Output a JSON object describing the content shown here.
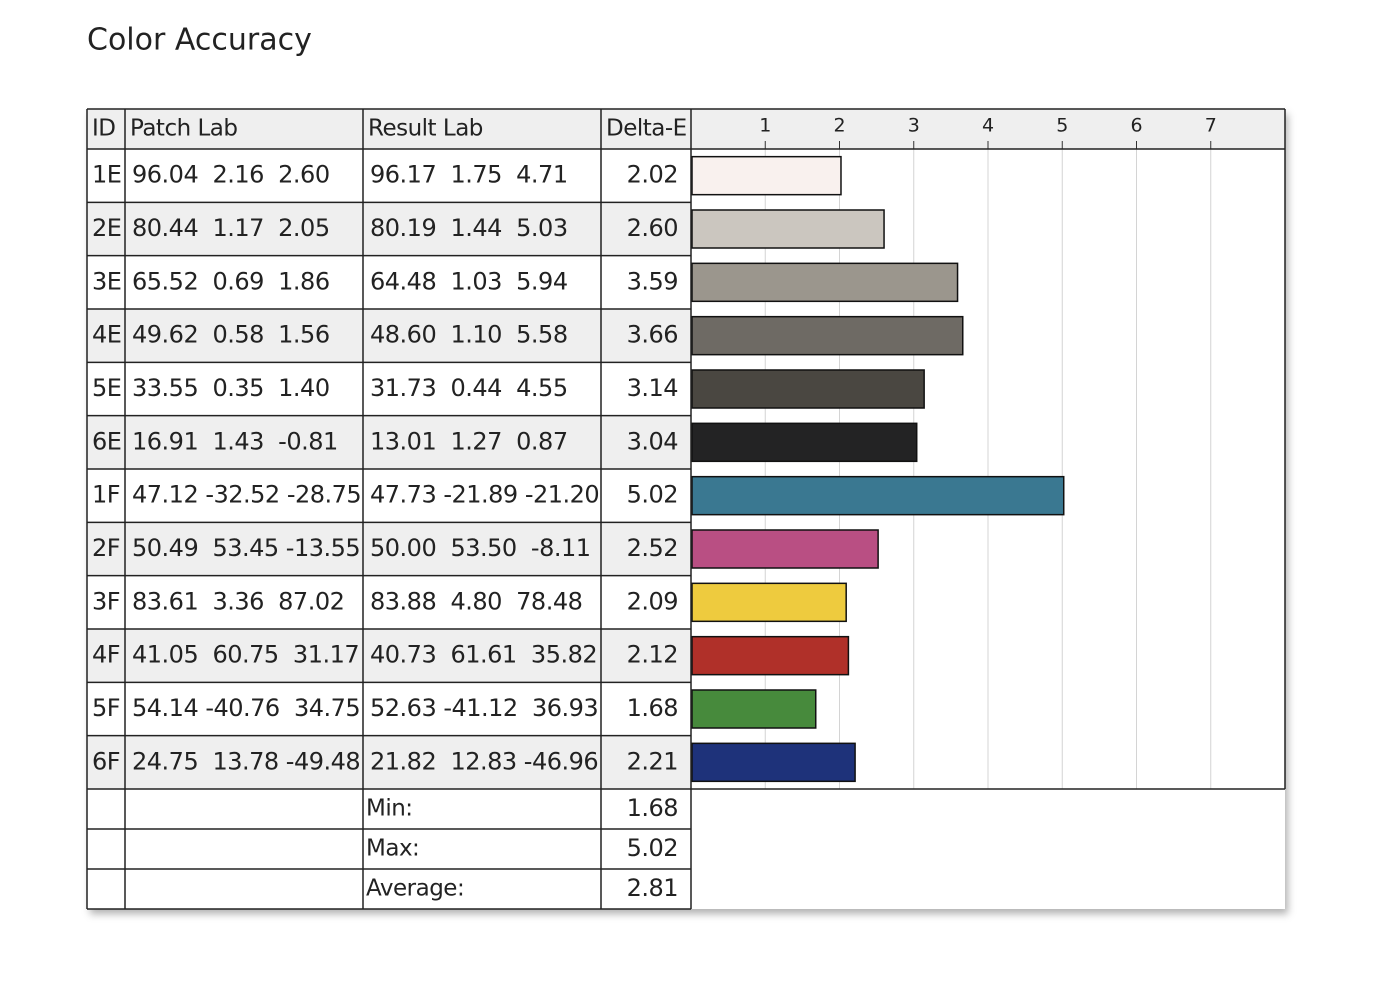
{
  "title": "Color Accuracy",
  "table": {
    "columns": [
      "ID",
      "Patch Lab",
      "Result Lab",
      "Delta-E"
    ],
    "rows": [
      [
        "1E",
        "96.04  2.16  2.60",
        "96.17  1.75  4.71"
      ],
      [
        "2E",
        "80.44  1.17  2.05",
        "80.19  1.44  5.03"
      ],
      [
        "3E",
        "65.52  0.69  1.86",
        "64.48  1.03  5.94"
      ],
      [
        "4E",
        "49.62  0.58  1.56",
        "48.60  1.10  5.58"
      ],
      [
        "5E",
        "33.55  0.35  1.40",
        "31.73  0.44  4.55"
      ],
      [
        "6E",
        "16.91  1.43  -0.81",
        "13.01  1.27  0.87"
      ],
      [
        "1F",
        "47.12 -32.52 -28.75",
        "47.73 -21.89 -21.20"
      ],
      [
        "2F",
        "50.49  53.45 -13.55",
        "50.00  53.50  -8.11"
      ],
      [
        "3F",
        "83.61  3.36  87.02",
        "83.88  4.80  78.48"
      ],
      [
        "4F",
        "41.05  60.75  31.17",
        "40.73  61.61  35.82"
      ],
      [
        "5F",
        "54.14 -40.76  34.75",
        "52.63 -41.12  36.93"
      ],
      [
        "6F",
        "24.75  13.78 -49.48",
        "21.82  12.83 -46.96"
      ]
    ],
    "summary": [
      [
        "Min:",
        "1.68"
      ],
      [
        "Max:",
        "5.02"
      ],
      [
        "Average:",
        "2.81"
      ]
    ]
  },
  "chart_data": {
    "type": "bar",
    "orientation": "horizontal",
    "values": [
      2.02,
      2.6,
      3.59,
      3.66,
      3.14,
      3.04,
      5.02,
      2.52,
      2.09,
      2.12,
      1.68,
      2.21
    ],
    "value_labels": [
      "2.02",
      "2.60",
      "3.59",
      "3.66",
      "3.14",
      "3.04",
      "5.02",
      "2.52",
      "2.09",
      "2.12",
      "1.68",
      "2.21"
    ],
    "colors": [
      "#f9f1ee",
      "#cbc6bf",
      "#9b968d",
      "#6e6a64",
      "#4a4741",
      "#232324",
      "#3a7891",
      "#b94f83",
      "#eecb3e",
      "#b03029",
      "#478a3c",
      "#1e327a"
    ],
    "xlim": [
      0,
      8
    ],
    "xticks": [
      1,
      2,
      3,
      4,
      5,
      6,
      7
    ],
    "grid": true
  }
}
